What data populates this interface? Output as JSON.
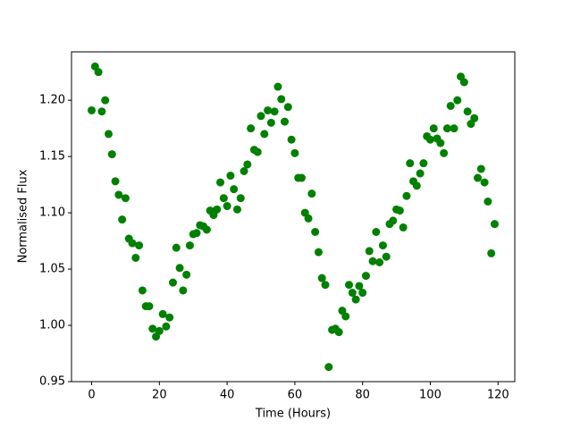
{
  "chart_data": {
    "type": "scatter",
    "xlabel": "Time (Hours)",
    "ylabel": "Normalised Flux",
    "color": "#008000",
    "x": [
      0,
      1,
      2,
      3,
      4,
      5,
      6,
      7,
      8,
      9,
      10,
      11,
      12,
      13,
      14,
      15,
      16,
      17,
      18,
      19,
      20,
      21,
      22,
      23,
      24,
      25,
      26,
      27,
      28,
      29,
      30,
      31,
      32,
      33,
      34,
      35,
      36,
      37,
      38,
      39,
      40,
      41,
      42,
      43,
      44,
      45,
      46,
      47,
      48,
      49,
      50,
      51,
      52,
      53,
      54,
      55,
      56,
      57,
      58,
      59,
      60,
      61,
      62,
      63,
      64,
      65,
      66,
      67,
      68,
      69,
      70,
      71,
      72,
      73,
      74,
      75,
      76,
      77,
      78,
      79,
      80,
      81,
      82,
      83,
      84,
      85,
      86,
      87,
      88,
      89,
      90,
      91,
      92,
      93,
      94,
      95,
      96,
      97,
      98,
      99,
      100,
      101,
      102,
      103,
      104,
      105,
      106,
      107,
      108,
      109,
      110,
      111,
      112,
      113,
      114,
      115,
      116,
      117,
      118,
      119
    ],
    "values": [
      1.191,
      1.23,
      1.225,
      1.19,
      1.2,
      1.17,
      1.152,
      1.128,
      1.116,
      1.094,
      1.113,
      1.077,
      1.073,
      1.06,
      1.071,
      1.031,
      1.017,
      1.017,
      0.997,
      0.99,
      0.995,
      1.01,
      0.999,
      1.007,
      1.038,
      1.069,
      1.051,
      1.031,
      1.045,
      1.071,
      1.081,
      1.082,
      1.089,
      1.088,
      1.085,
      1.102,
      1.098,
      1.103,
      1.127,
      1.113,
      1.106,
      1.133,
      1.121,
      1.103,
      1.113,
      1.137,
      1.143,
      1.175,
      1.156,
      1.154,
      1.186,
      1.17,
      1.191,
      1.18,
      1.19,
      1.212,
      1.201,
      1.181,
      1.194,
      1.165,
      1.153,
      1.131,
      1.131,
      1.1,
      1.095,
      1.117,
      1.083,
      1.065,
      1.042,
      1.036,
      0.963,
      0.996,
      0.997,
      0.994,
      1.013,
      1.008,
      1.036,
      1.029,
      1.023,
      1.035,
      1.029,
      1.044,
      1.066,
      1.057,
      1.083,
      1.056,
      1.071,
      1.061,
      1.09,
      1.093,
      1.103,
      1.102,
      1.087,
      1.115,
      1.144,
      1.128,
      1.124,
      1.135,
      1.144,
      1.168,
      1.165,
      1.175,
      1.166,
      1.162,
      1.153,
      1.175,
      1.195,
      1.175,
      1.2,
      1.221,
      1.216,
      1.19,
      1.179,
      1.184,
      1.131,
      1.139,
      1.127,
      1.11,
      1.064,
      1.09
    ],
    "xlim": [
      -5.95,
      124.95
    ],
    "xticks": [
      0,
      20,
      40,
      60,
      80,
      100,
      120
    ],
    "ylim": [
      0.95,
      1.243
    ],
    "yticks": [
      0.95,
      {
        "value": 1,
        "label": "1.00"
      },
      1.05,
      {
        "value": 1.1,
        "label": "1.10"
      },
      1.15,
      {
        "value": 1.2,
        "label": "1.20"
      }
    ]
  }
}
